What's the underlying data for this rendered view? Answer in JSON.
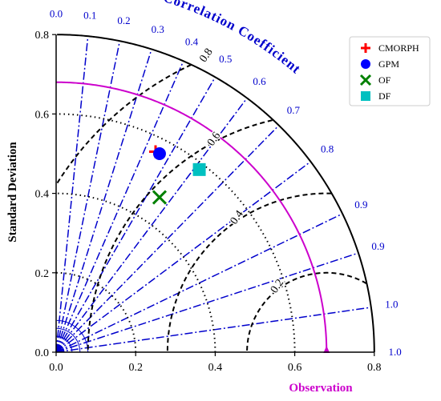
{
  "chart_data": {
    "type": "taylor",
    "xlabel": "Observation",
    "ylabel": "Standard Deviation",
    "correlation_title": "Correlation Coefficient",
    "std_range": [
      0,
      0.8
    ],
    "std_ticks": [
      "0.0",
      "0.2",
      "0.4",
      "0.6",
      "0.8"
    ],
    "correlation_ticks": [
      {
        "value": 0.0,
        "label": "0.0"
      },
      {
        "value": 0.1,
        "label": "0.1"
      },
      {
        "value": 0.2,
        "label": "0.2"
      },
      {
        "value": 0.3,
        "label": "0.3"
      },
      {
        "value": 0.4,
        "label": "0.4"
      },
      {
        "value": 0.5,
        "label": "0.5"
      },
      {
        "value": 0.6,
        "label": "0.6"
      },
      {
        "value": 0.7,
        "label": "0.7"
      },
      {
        "value": 0.8,
        "label": "0.8"
      },
      {
        "value": 0.9,
        "label": "0.9"
      },
      {
        "value": 0.95,
        "label": "0.9"
      },
      {
        "value": 0.99,
        "label": "1.0"
      },
      {
        "value": 1.0,
        "label": "1.0"
      }
    ],
    "observation_std": 0.68,
    "rms_contours": [
      {
        "value": 0.2,
        "label": "0.2"
      },
      {
        "value": 0.4,
        "label": "0.4"
      },
      {
        "value": 0.6,
        "label": "0.6"
      },
      {
        "value": 0.8,
        "label": "0.8"
      }
    ],
    "std_contours": [
      0.2,
      0.4,
      0.6
    ],
    "series": [
      {
        "name": "CMORPH",
        "x": 0.25,
        "y": 0.505,
        "marker": "plus",
        "color": "#ff0000"
      },
      {
        "name": "GPM",
        "x": 0.26,
        "y": 0.5,
        "marker": "circle",
        "color": "#0000ff"
      },
      {
        "name": "OF",
        "x": 0.26,
        "y": 0.39,
        "marker": "x",
        "color": "#008000"
      },
      {
        "name": "DF",
        "x": 0.36,
        "y": 0.46,
        "marker": "square",
        "color": "#00c0c0"
      }
    ],
    "colors": {
      "correlation_lines": "#0000cc",
      "observation_arc": "#cc00cc",
      "rms_contours": "#000000"
    }
  }
}
